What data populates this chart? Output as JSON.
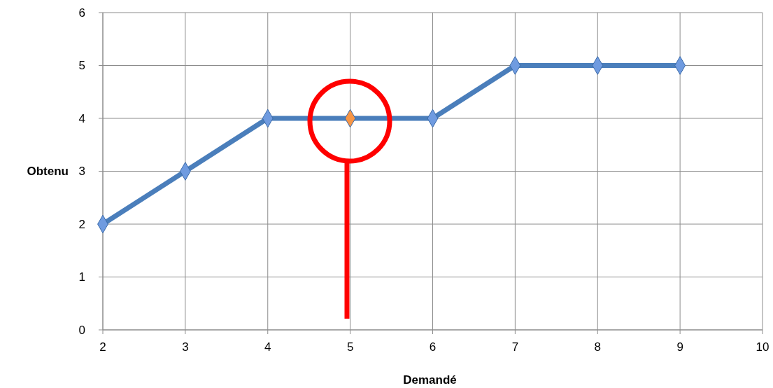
{
  "chart_data": {
    "type": "line",
    "xlabel": "Demandé",
    "ylabel": "Obtenu",
    "x": [
      2,
      3,
      4,
      5,
      6,
      7,
      8,
      9
    ],
    "series": [
      {
        "color": "#4a7ebb",
        "colors": [
          "#6f9be0",
          "#6f9be0",
          "#6f9be0",
          "#f79646",
          "#6f9be0",
          "#6f9be0",
          "#6f9be0",
          "#6f9be0"
        ],
        "values": [
          2,
          3,
          4,
          4,
          4,
          5,
          5,
          5
        ]
      }
    ],
    "xlim": [
      2,
      10
    ],
    "xticks": [
      2,
      3,
      4,
      5,
      6,
      7,
      8,
      9,
      10
    ],
    "ylim": [
      0,
      6
    ],
    "yticks": [
      0,
      1,
      2,
      3,
      4,
      5,
      6
    ],
    "grid": true,
    "marker": "diamond",
    "line_style": "solid"
  }
}
